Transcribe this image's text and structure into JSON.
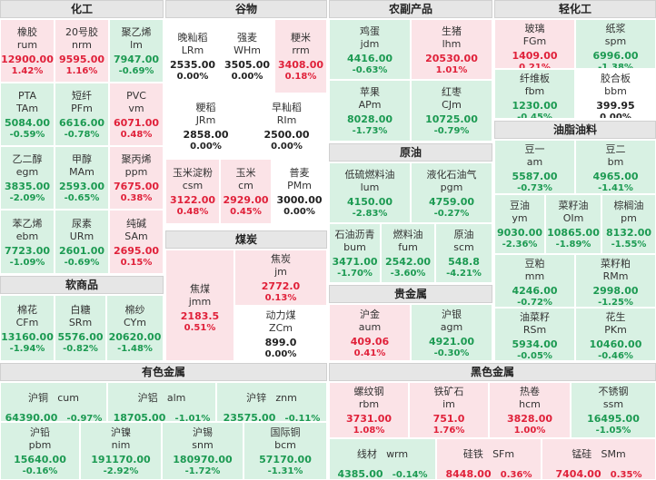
{
  "sections": {
    "chemical": "化工",
    "grain": "谷物",
    "agri": "农副产品",
    "light": "轻化工",
    "oils": "油脂油料",
    "crude": "原油",
    "soft": "软商品",
    "coal": "煤炭",
    "precious": "贵金属",
    "nonferrous": "有色金属",
    "ferrous": "黑色金属"
  },
  "tiles": [
    {
      "name": "橡胶",
      "code": "rum",
      "price": "12900.00",
      "pct": "1.42%",
      "trend": "r"
    },
    {
      "name": "20号胶",
      "code": "nrm",
      "price": "9595.00",
      "pct": "1.16%",
      "trend": "r"
    },
    {
      "name": "聚乙烯",
      "code": "lm",
      "price": "7947.00",
      "pct": "-0.69%",
      "trend": "g"
    },
    {
      "name": "PTA",
      "code": "TAm",
      "price": "5084.00",
      "pct": "-0.59%",
      "trend": "g"
    },
    {
      "name": "短纤",
      "code": "PFm",
      "price": "6616.00",
      "pct": "-0.78%",
      "trend": "g"
    },
    {
      "name": "PVC",
      "code": "vm",
      "price": "6071.00",
      "pct": "0.48%",
      "trend": "r"
    },
    {
      "name": "乙二醇",
      "code": "egm",
      "price": "3835.00",
      "pct": "-2.09%",
      "trend": "g"
    },
    {
      "name": "甲醇",
      "code": "MAm",
      "price": "2593.00",
      "pct": "-0.65%",
      "trend": "g"
    },
    {
      "name": "聚丙烯",
      "code": "ppm",
      "price": "7675.00",
      "pct": "0.38%",
      "trend": "r"
    },
    {
      "name": "苯乙烯",
      "code": "ebm",
      "price": "7723.00",
      "pct": "-1.09%",
      "trend": "g"
    },
    {
      "name": "尿素",
      "code": "URm",
      "price": "2601.00",
      "pct": "-0.69%",
      "trend": "g"
    },
    {
      "name": "纯碱",
      "code": "SAm",
      "price": "2695.00",
      "pct": "0.15%",
      "trend": "r"
    },
    {
      "name": "晚籼稻",
      "code": "LRm",
      "price": "2535.00",
      "pct": "0.00%",
      "trend": "n"
    },
    {
      "name": "强麦",
      "code": "WHm",
      "price": "3505.00",
      "pct": "0.00%",
      "trend": "n"
    },
    {
      "name": "粳米",
      "code": "rrm",
      "price": "3408.00",
      "pct": "0.18%",
      "trend": "r"
    },
    {
      "name": "粳稻",
      "code": "JRm",
      "price": "2858.00",
      "pct": "0.00%",
      "trend": "n"
    },
    {
      "name": "早籼稻",
      "code": "RIm",
      "price": "2500.00",
      "pct": "0.00%",
      "trend": "n"
    },
    {
      "name": "玉米淀粉",
      "code": "csm",
      "price": "3122.00",
      "pct": "0.48%",
      "trend": "r"
    },
    {
      "name": "玉米",
      "code": "cm",
      "price": "2929.00",
      "pct": "0.45%",
      "trend": "r"
    },
    {
      "name": "普麦",
      "code": "PMm",
      "price": "3000.00",
      "pct": "0.00%",
      "trend": "n"
    },
    {
      "name": "鸡蛋",
      "code": "jdm",
      "price": "4416.00",
      "pct": "-0.63%",
      "trend": "g"
    },
    {
      "name": "生猪",
      "code": "lhm",
      "price": "20530.00",
      "pct": "1.01%",
      "trend": "r"
    },
    {
      "name": "苹果",
      "code": "APm",
      "price": "8028.00",
      "pct": "-1.73%",
      "trend": "g"
    },
    {
      "name": "红枣",
      "code": "CJm",
      "price": "10725.00",
      "pct": "-0.79%",
      "trend": "g"
    },
    {
      "name": "玻璃",
      "code": "FGm",
      "price": "1409.00",
      "pct": "0.21%",
      "trend": "r"
    },
    {
      "name": "纸浆",
      "code": "spm",
      "price": "6996.00",
      "pct": "-1.38%",
      "trend": "g"
    },
    {
      "name": "纤维板",
      "code": "fbm",
      "price": "1230.00",
      "pct": "-0.45%",
      "trend": "g"
    },
    {
      "name": "胶合板",
      "code": "bbm",
      "price": "399.95",
      "pct": "0.00%",
      "trend": "n"
    },
    {
      "name": "豆一",
      "code": "am",
      "price": "5587.00",
      "pct": "-0.73%",
      "trend": "g"
    },
    {
      "name": "豆二",
      "code": "bm",
      "price": "4965.00",
      "pct": "-1.41%",
      "trend": "g"
    },
    {
      "name": "豆油",
      "code": "ym",
      "price": "9030.00",
      "pct": "-2.36%",
      "trend": "g"
    },
    {
      "name": "菜籽油",
      "code": "OIm",
      "price": "10865.00",
      "pct": "-1.89%",
      "trend": "g"
    },
    {
      "name": "棕榈油",
      "code": "pm",
      "price": "8132.00",
      "pct": "-1.55%",
      "trend": "g"
    },
    {
      "name": "豆粕",
      "code": "mm",
      "price": "4246.00",
      "pct": "-0.72%",
      "trend": "g"
    },
    {
      "name": "菜籽粕",
      "code": "RMm",
      "price": "2998.00",
      "pct": "-1.25%",
      "trend": "g"
    },
    {
      "name": "油菜籽",
      "code": "RSm",
      "price": "5934.00",
      "pct": "-0.05%",
      "trend": "g"
    },
    {
      "name": "花生",
      "code": "PKm",
      "price": "10460.00",
      "pct": "-0.46%",
      "trend": "g"
    },
    {
      "name": "低硫燃料油",
      "code": "lum",
      "price": "4150.00",
      "pct": "-2.83%",
      "trend": "g"
    },
    {
      "name": "液化石油气",
      "code": "pgm",
      "price": "4759.00",
      "pct": "-0.27%",
      "trend": "g"
    },
    {
      "name": "石油沥青",
      "code": "bum",
      "price": "3471.00",
      "pct": "-1.70%",
      "trend": "g"
    },
    {
      "name": "燃料油",
      "code": "fum",
      "price": "2542.00",
      "pct": "-3.60%",
      "trend": "g"
    },
    {
      "name": "原油",
      "code": "scm",
      "price": "548.8",
      "pct": "-4.21%",
      "trend": "g"
    },
    {
      "name": "棉花",
      "code": "CFm",
      "price": "13160.00",
      "pct": "-1.94%",
      "trend": "g"
    },
    {
      "name": "白糖",
      "code": "SRm",
      "price": "5576.00",
      "pct": "-0.82%",
      "trend": "g"
    },
    {
      "name": "棉纱",
      "code": "CYm",
      "price": "20620.00",
      "pct": "-1.48%",
      "trend": "g"
    },
    {
      "name": "焦煤",
      "code": "jmm",
      "price": "2183.5",
      "pct": "0.51%",
      "trend": "r"
    },
    {
      "name": "焦炭",
      "code": "jm",
      "price": "2772.0",
      "pct": "0.13%",
      "trend": "r"
    },
    {
      "name": "动力煤",
      "code": "ZCm",
      "price": "899.0",
      "pct": "0.00%",
      "trend": "n"
    },
    {
      "name": "沪金",
      "code": "aum",
      "price": "409.06",
      "pct": "0.41%",
      "trend": "r"
    },
    {
      "name": "沪银",
      "code": "agm",
      "price": "4921.00",
      "pct": "-0.30%",
      "trend": "g"
    },
    {
      "name": "沪铜",
      "code": "cum",
      "price": "64390.00",
      "pct": "-0.97%",
      "trend": "g"
    },
    {
      "name": "沪铝",
      "code": "alm",
      "price": "18705.00",
      "pct": "-1.01%",
      "trend": "g"
    },
    {
      "name": "沪锌",
      "code": "znm",
      "price": "23575.00",
      "pct": "-0.11%",
      "trend": "g"
    },
    {
      "name": "沪铅",
      "code": "pbm",
      "price": "15640.00",
      "pct": "-0.16%",
      "trend": "g"
    },
    {
      "name": "沪镍",
      "code": "nim",
      "price": "191170.00",
      "pct": "-2.92%",
      "trend": "g"
    },
    {
      "name": "沪锡",
      "code": "snm",
      "price": "180970.00",
      "pct": "-1.72%",
      "trend": "g"
    },
    {
      "name": "国际铜",
      "code": "bcm",
      "price": "57170.00",
      "pct": "-1.31%",
      "trend": "g"
    },
    {
      "name": "螺纹钢",
      "code": "rbm",
      "price": "3731.00",
      "pct": "1.08%",
      "trend": "r"
    },
    {
      "name": "铁矿石",
      "code": "im",
      "price": "751.0",
      "pct": "1.76%",
      "trend": "r"
    },
    {
      "name": "热卷",
      "code": "hcm",
      "price": "3828.00",
      "pct": "1.00%",
      "trend": "r"
    },
    {
      "name": "不锈钢",
      "code": "ssm",
      "price": "16495.00",
      "pct": "-1.05%",
      "trend": "g"
    },
    {
      "name": "线材",
      "code": "wrm",
      "price": "4385.00",
      "pct": "-0.14%",
      "trend": "g"
    },
    {
      "name": "硅铁",
      "code": "SFm",
      "price": "8448.00",
      "pct": "0.36%",
      "trend": "r"
    },
    {
      "name": "锰硅",
      "code": "SMm",
      "price": "7404.00",
      "pct": "0.35%",
      "trend": "r"
    }
  ]
}
